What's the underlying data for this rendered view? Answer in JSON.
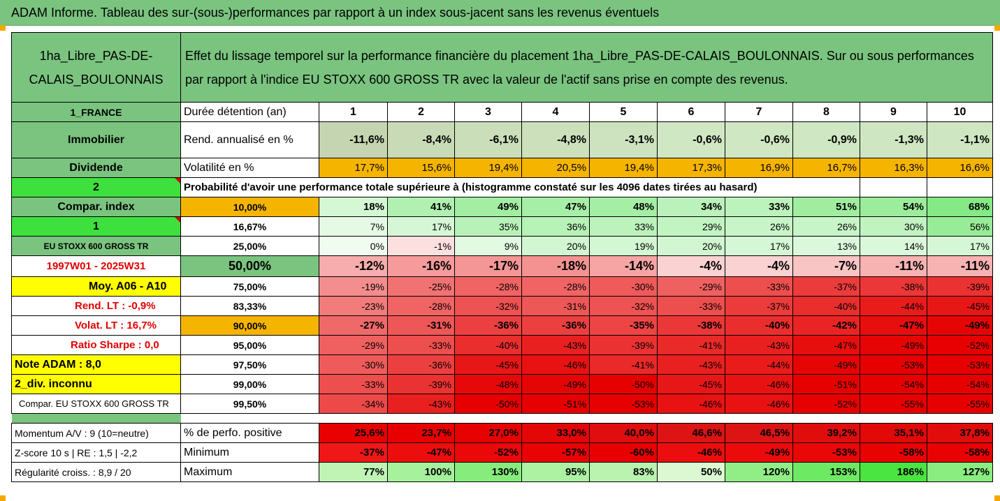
{
  "title": "ADAM Informe. Tableau des sur-(sous-)performances par rapport à un index sous-jacent sans les revenus éventuels",
  "fund_name": "1ha_Libre_PAS-DE-CALAIS_BOULONNAIS",
  "description": "Effet du lissage temporel sur la performance financière du placement 1ha_Libre_PAS-DE-CALAIS_BOULONNAIS. Sur ou sous performances par rapport à l'indice EU STOXX 600 GROSS TR avec la valeur de l'actif sans prise en compte des revenus.",
  "country": "1_FRANCE",
  "duration_label": "Durée détention (an)",
  "years": [
    "1",
    "2",
    "3",
    "4",
    "5",
    "6",
    "7",
    "8",
    "9",
    "10"
  ],
  "category": "Immobilier",
  "rend_label": "Rend. annualisé en %",
  "rend": [
    "-11,6%",
    "-8,4%",
    "-6,1%",
    "-4,8%",
    "-3,1%",
    "-0,6%",
    "-0,6%",
    "-0,9%",
    "-1,3%",
    "-1,1%"
  ],
  "dividend": "Dividende",
  "vol_label": "Volatilité en %",
  "vol": [
    "17,7%",
    "15,6%",
    "19,4%",
    "20,5%",
    "19,4%",
    "17,3%",
    "16,9%",
    "16,7%",
    "16,3%",
    "16,6%"
  ],
  "prob_num": "2",
  "prob_label": "Probabilité d'avoir une performance totale supérieure à (histogramme constaté sur les 4096 dates tirées au hasard)",
  "prob_rows": [
    {
      "left": "Compar. index",
      "pct": "10,00%",
      "values": [
        "18%",
        "41%",
        "49%",
        "47%",
        "48%",
        "34%",
        "33%",
        "51%",
        "54%",
        "68%"
      ]
    },
    {
      "left": "1",
      "pct": "16,67%",
      "values": [
        "7%",
        "17%",
        "35%",
        "36%",
        "33%",
        "29%",
        "26%",
        "26%",
        "30%",
        "56%"
      ]
    },
    {
      "left": "EU STOXX 600 GROSS TR",
      "pct": "25,00%",
      "values": [
        "0%",
        "-1%",
        "9%",
        "20%",
        "19%",
        "20%",
        "17%",
        "13%",
        "14%",
        "17%"
      ]
    },
    {
      "left": "1997W01 - 2025W31",
      "pct": "50,00%",
      "values": [
        "-12%",
        "-16%",
        "-17%",
        "-18%",
        "-14%",
        "-4%",
        "-4%",
        "-7%",
        "-11%",
        "-11%"
      ]
    },
    {
      "left": "Moy. A06 - A10",
      "pct": "75,00%",
      "values": [
        "-19%",
        "-25%",
        "-28%",
        "-28%",
        "-30%",
        "-29%",
        "-33%",
        "-37%",
        "-38%",
        "-39%"
      ]
    },
    {
      "left": "Rend. LT :   -0,9%",
      "pct": "83,33%",
      "values": [
        "-23%",
        "-28%",
        "-32%",
        "-31%",
        "-32%",
        "-33%",
        "-37%",
        "-40%",
        "-44%",
        "-45%"
      ]
    },
    {
      "left": "Volat. LT :   16,7%",
      "pct": "90,00%",
      "values": [
        "-27%",
        "-31%",
        "-36%",
        "-36%",
        "-35%",
        "-38%",
        "-40%",
        "-42%",
        "-47%",
        "-49%"
      ]
    },
    {
      "left": "Ratio Sharpe :   0,0",
      "pct": "95,00%",
      "values": [
        "-29%",
        "-33%",
        "-40%",
        "-43%",
        "-39%",
        "-41%",
        "-43%",
        "-47%",
        "-49%",
        "-52%"
      ]
    },
    {
      "left": "Note ADAM : 8,0",
      "pct": "97,50%",
      "values": [
        "-30%",
        "-36%",
        "-45%",
        "-46%",
        "-41%",
        "-43%",
        "-44%",
        "-49%",
        "-53%",
        "-53%"
      ]
    },
    {
      "left": "2_div. inconnu",
      "pct": "99,00%",
      "values": [
        "-33%",
        "-39%",
        "-48%",
        "-49%",
        "-50%",
        "-45%",
        "-46%",
        "-51%",
        "-54%",
        "-54%"
      ]
    },
    {
      "left": "Compar. EU STOXX 600 GROSS TR",
      "pct": "99,50%",
      "values": [
        "-34%",
        "-43%",
        "-50%",
        "-51%",
        "-53%",
        "-46%",
        "-46%",
        "-52%",
        "-55%",
        "-55%"
      ]
    }
  ],
  "bottom_rows": [
    {
      "left": "Momentum A/V : 9 (10=neutre)",
      "label": "% de perfo. positive",
      "values": [
        "25,6%",
        "23,7%",
        "27,0%",
        "33,0%",
        "40,0%",
        "46,6%",
        "46,5%",
        "39,2%",
        "35,1%",
        "37,8%"
      ]
    },
    {
      "left": "Z-score 10 s  |  RE : 1,5  |  -2,2",
      "label": "Minimum",
      "values": [
        "-37%",
        "-47%",
        "-52%",
        "-57%",
        "-60%",
        "-46%",
        "-49%",
        "-53%",
        "-58%",
        "-58%"
      ]
    },
    {
      "left": "Régularité croiss. : 8,9 / 20",
      "label": "Maximum",
      "values": [
        "77%",
        "100%",
        "130%",
        "95%",
        "83%",
        "50%",
        "120%",
        "153%",
        "186%",
        "127%"
      ]
    }
  ],
  "colors": {
    "header_green": "#7ac47f",
    "light_green": "#c5e0b4",
    "orange": "#f5b400",
    "yellow": "#ffff00",
    "bright_green": "#3ee03e",
    "accent_red": "#e00000"
  }
}
